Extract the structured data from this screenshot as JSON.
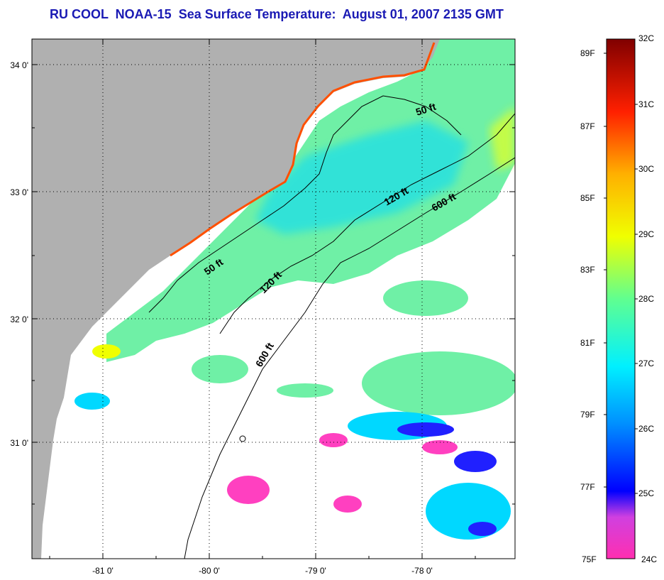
{
  "title": "RU COOL  NOAA-15  Sea Surface Temperature:  August 01, 2007 2135 GMT",
  "map": {
    "lat_labels": [
      "34 0'",
      "33 0'",
      "32 0'",
      "31 0'"
    ],
    "lon_labels": [
      "-81 0'",
      "-80 0'",
      "-79 0'",
      "-78 0'"
    ],
    "contour_labels": {
      "c50_north": "50 ft",
      "c50_south": "50 ft",
      "c120_north": "120 ft",
      "c120_south": "120 ft",
      "c600_north": "600 ft",
      "c600_south": "600 ft"
    },
    "colors": {
      "land": "#b0b0b0",
      "cloud": "#ffffff",
      "water_main": "#6ff0a6",
      "water_cool": "#00d8ff",
      "water_warm": "#d8ff30"
    }
  },
  "colorbar": {
    "fahrenheit_labels": [
      "89F",
      "87F",
      "85F",
      "83F",
      "81F",
      "79F",
      "77F",
      "75F"
    ],
    "celsius_labels": [
      "32C",
      "31C",
      "30C",
      "29C",
      "28C",
      "27C",
      "26C",
      "25C",
      "24C"
    ],
    "range_c": [
      24,
      32
    ],
    "range_f": [
      75,
      89
    ]
  }
}
